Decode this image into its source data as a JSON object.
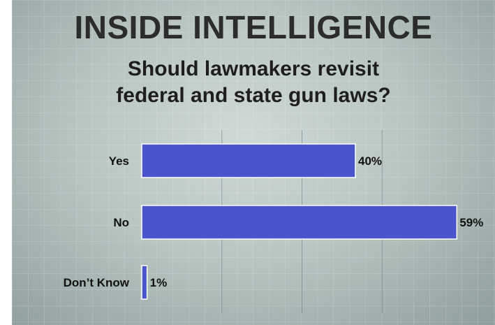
{
  "header": {
    "headline": "INSIDE INTELLIGENCE",
    "question_line1": "Should lawmakers revisit",
    "question_line2": "federal and state gun laws?"
  },
  "chart_data": {
    "type": "bar",
    "orientation": "horizontal",
    "categories": [
      "Yes",
      "No",
      "Don’t Know"
    ],
    "values": [
      40,
      59,
      1
    ],
    "value_labels": [
      "40%",
      "59%",
      "1%"
    ],
    "title": "Should lawmakers revisit federal and state gun laws?",
    "xlim": [
      0,
      60
    ],
    "grid": true,
    "colors": {
      "bar": "#4a55cc",
      "bar_border": "#ffffff",
      "text": "#111111"
    }
  }
}
